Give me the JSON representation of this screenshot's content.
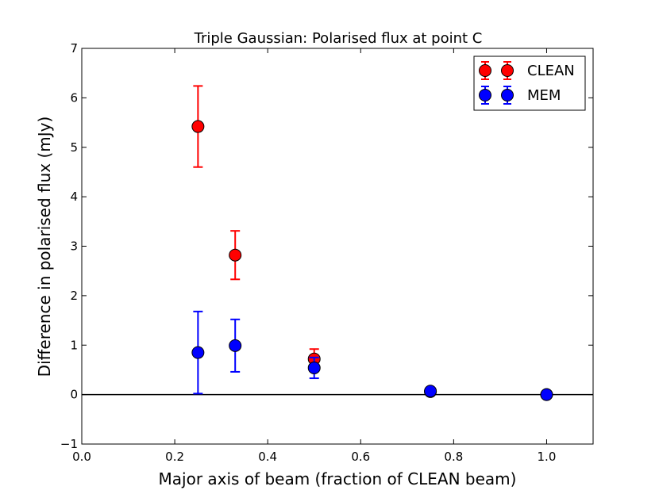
{
  "chart_data": {
    "type": "scatter",
    "title": "Triple Gaussian: Polarised flux at point C",
    "xlabel": "Major axis of beam (fraction of CLEAN beam)",
    "ylabel": "Difference in polarised flux (mJy)",
    "xlim": [
      0.0,
      1.1
    ],
    "ylim": [
      -1,
      7
    ],
    "x_ticks": [
      "0.0",
      "0.2",
      "0.4",
      "0.6",
      "0.8",
      "1.0"
    ],
    "y_ticks": [
      "−1",
      "0",
      "1",
      "2",
      "3",
      "4",
      "5",
      "6",
      "7"
    ],
    "reference_line_y": 0,
    "grid": false,
    "legend_position": "top-right",
    "series": [
      {
        "name": "CLEAN",
        "color": "#ff0000",
        "points": [
          {
            "x": 0.25,
            "y": 5.42,
            "err": 0.82
          },
          {
            "x": 0.33,
            "y": 2.82,
            "err": 0.49
          },
          {
            "x": 0.5,
            "y": 0.72,
            "err": 0.2
          },
          {
            "x": 0.75,
            "y": 0.06,
            "err": 0.03
          },
          {
            "x": 1.0,
            "y": 0.0,
            "err": 0.0
          }
        ]
      },
      {
        "name": "MEM",
        "color": "#0000ff",
        "points": [
          {
            "x": 0.25,
            "y": 0.85,
            "err": 0.83
          },
          {
            "x": 0.33,
            "y": 0.99,
            "err": 0.53
          },
          {
            "x": 0.5,
            "y": 0.54,
            "err": 0.21
          },
          {
            "x": 0.75,
            "y": 0.07,
            "err": 0.03
          },
          {
            "x": 1.0,
            "y": 0.0,
            "err": 0.0
          }
        ]
      }
    ]
  }
}
